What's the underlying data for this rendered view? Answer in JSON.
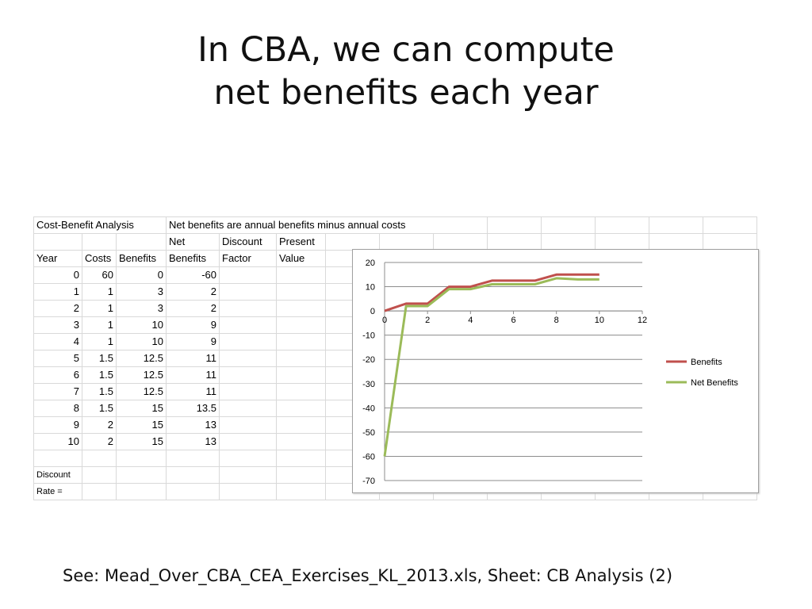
{
  "slide": {
    "title_line1": "In CBA, we can compute",
    "title_line2": "net benefits each year",
    "footer": "See: Mead_Over_CBA_CEA_Exercises_KL_2013.xls, Sheet: CB Analysis (2)"
  },
  "sheet": {
    "header_row1": {
      "title": "Cost-Benefit Analysis",
      "note": "Net benefits are annual benefits minus annual costs"
    },
    "header_row2": {
      "net": "Net",
      "discount": "Discount",
      "present": "Present"
    },
    "header_row3": {
      "year": "Year",
      "costs": "Costs",
      "benefits": "Benefits",
      "net_benefits": "Benefits",
      "factor": "Factor",
      "value": "Value"
    },
    "rows": [
      {
        "year": "0",
        "costs": "60",
        "benefits": "0",
        "net": "-60"
      },
      {
        "year": "1",
        "costs": "1",
        "benefits": "3",
        "net": "2"
      },
      {
        "year": "2",
        "costs": "1",
        "benefits": "3",
        "net": "2"
      },
      {
        "year": "3",
        "costs": "1",
        "benefits": "10",
        "net": "9"
      },
      {
        "year": "4",
        "costs": "1",
        "benefits": "10",
        "net": "9"
      },
      {
        "year": "5",
        "costs": "1.5",
        "benefits": "12.5",
        "net": "11"
      },
      {
        "year": "6",
        "costs": "1.5",
        "benefits": "12.5",
        "net": "11"
      },
      {
        "year": "7",
        "costs": "1.5",
        "benefits": "12.5",
        "net": "11"
      },
      {
        "year": "8",
        "costs": "1.5",
        "benefits": "15",
        "net": "13.5"
      },
      {
        "year": "9",
        "costs": "2",
        "benefits": "15",
        "net": "13"
      },
      {
        "year": "10",
        "costs": "2",
        "benefits": "15",
        "net": "13"
      }
    ],
    "discount_label": "Discount",
    "rate_label": "Rate ="
  },
  "chart_data": {
    "type": "line",
    "x": [
      0,
      1,
      2,
      3,
      4,
      5,
      6,
      7,
      8,
      9,
      10
    ],
    "series": [
      {
        "name": "Benefits",
        "color": "#c0504d",
        "values": [
          0,
          3,
          3,
          10,
          10,
          12.5,
          12.5,
          12.5,
          15,
          15,
          15
        ]
      },
      {
        "name": "Net Benefits",
        "color": "#9bbb59",
        "values": [
          -60,
          2,
          2,
          9,
          9,
          11,
          11,
          11,
          13.5,
          13,
          13
        ]
      }
    ],
    "xlim": [
      0,
      12
    ],
    "ylim": [
      -70,
      20
    ],
    "xticks": [
      0,
      2,
      4,
      6,
      8,
      10,
      12
    ],
    "yticks": [
      20,
      10,
      0,
      -10,
      -20,
      -30,
      -40,
      -50,
      -60,
      -70
    ],
    "grid": "horizontal",
    "legend": "right"
  }
}
